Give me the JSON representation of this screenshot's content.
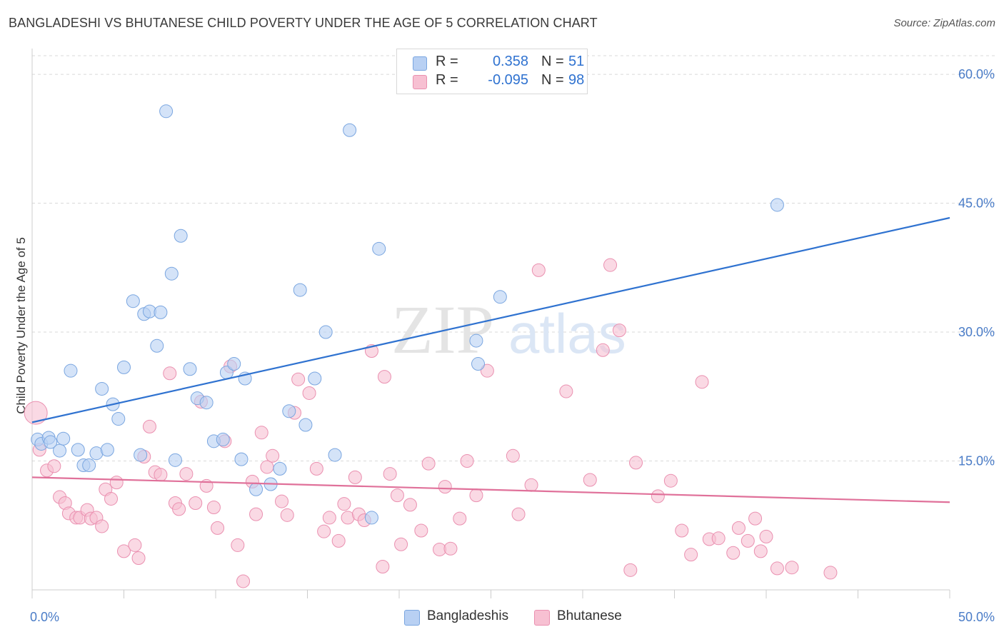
{
  "title": "BANGLADESHI VS BHUTANESE CHILD POVERTY UNDER THE AGE OF 5 CORRELATION CHART",
  "source": "Source: ZipAtlas.com",
  "watermark": {
    "zip": "ZIP",
    "atlas": "atlas"
  },
  "legend": {
    "rows": [
      {
        "r_label": "R =",
        "r_value": "0.358",
        "n_label": "N =",
        "n_value": "51"
      },
      {
        "r_label": "R =",
        "r_value": "-0.095",
        "n_label": "N =",
        "n_value": "98"
      }
    ]
  },
  "colors": {
    "blue_fill": "#b8d0f3",
    "blue_stroke": "#7aa6e0",
    "blue_line": "#2f72d0",
    "pink_fill": "#f7c0d2",
    "pink_stroke": "#ea90b0",
    "pink_line": "#e0719a",
    "tick_text": "#4a7cc7",
    "grid": "#d9d9d9"
  },
  "chart_data": {
    "type": "scatter",
    "title": "BANGLADESHI VS BHUTANESE CHILD POVERTY UNDER THE AGE OF 5 CORRELATION CHART",
    "xlabel": "",
    "ylabel": "Child Poverty Under the Age of 5",
    "xlim": [
      0,
      50
    ],
    "ylim": [
      0,
      62
    ],
    "x_tick_labels": [
      "0.0%",
      "50.0%"
    ],
    "y_ticks": [
      15,
      30,
      45,
      60
    ],
    "y_tick_labels": [
      "15.0%",
      "30.0%",
      "45.0%",
      "60.0%"
    ],
    "grid": true,
    "legend_position": "bottom",
    "series": [
      {
        "name": "Bangladeshis",
        "r": 0.358,
        "n": 51,
        "trend": [
          [
            0,
            19.5
          ],
          [
            50,
            43.3
          ]
        ],
        "points": [
          [
            0.3,
            17.5
          ],
          [
            0.5,
            17.0
          ],
          [
            0.9,
            17.7
          ],
          [
            1.0,
            17.2
          ],
          [
            1.5,
            16.2
          ],
          [
            1.7,
            17.6
          ],
          [
            2.1,
            25.5
          ],
          [
            2.5,
            16.3
          ],
          [
            2.8,
            14.5
          ],
          [
            3.1,
            14.5
          ],
          [
            3.5,
            15.9
          ],
          [
            3.8,
            23.4
          ],
          [
            4.1,
            16.3
          ],
          [
            4.4,
            21.6
          ],
          [
            4.7,
            19.9
          ],
          [
            5.0,
            25.9
          ],
          [
            5.5,
            33.6
          ],
          [
            5.9,
            15.7
          ],
          [
            6.1,
            32.1
          ],
          [
            6.4,
            32.4
          ],
          [
            6.8,
            28.4
          ],
          [
            7.0,
            32.3
          ],
          [
            7.3,
            55.7
          ],
          [
            7.8,
            15.1
          ],
          [
            7.6,
            36.8
          ],
          [
            8.1,
            41.2
          ],
          [
            8.6,
            25.7
          ],
          [
            9.0,
            22.3
          ],
          [
            9.5,
            21.8
          ],
          [
            9.9,
            17.3
          ],
          [
            10.4,
            17.5
          ],
          [
            10.6,
            25.3
          ],
          [
            11.0,
            26.3
          ],
          [
            11.4,
            15.2
          ],
          [
            11.6,
            24.6
          ],
          [
            12.2,
            11.7
          ],
          [
            13.0,
            12.3
          ],
          [
            13.5,
            14.1
          ],
          [
            14.0,
            20.8
          ],
          [
            14.6,
            34.9
          ],
          [
            14.9,
            19.2
          ],
          [
            15.4,
            24.6
          ],
          [
            16.0,
            30.0
          ],
          [
            16.5,
            15.7
          ],
          [
            17.3,
            53.5
          ],
          [
            18.5,
            8.4
          ],
          [
            18.9,
            39.7
          ],
          [
            24.3,
            26.3
          ],
          [
            24.2,
            29.0
          ],
          [
            25.5,
            34.1
          ],
          [
            40.6,
            44.8
          ]
        ]
      },
      {
        "name": "Bhutanese",
        "r": -0.095,
        "n": 98,
        "trend": [
          [
            0,
            13.1
          ],
          [
            50,
            10.2
          ]
        ],
        "points": [
          [
            0.2,
            20.6
          ],
          [
            0.4,
            16.3
          ],
          [
            0.8,
            13.9
          ],
          [
            1.2,
            14.4
          ],
          [
            1.5,
            10.8
          ],
          [
            1.8,
            10.1
          ],
          [
            2.0,
            8.9
          ],
          [
            2.4,
            8.4
          ],
          [
            2.6,
            8.4
          ],
          [
            3.0,
            9.3
          ],
          [
            3.2,
            8.3
          ],
          [
            3.5,
            8.4
          ],
          [
            3.8,
            7.4
          ],
          [
            4.0,
            11.7
          ],
          [
            4.3,
            10.6
          ],
          [
            4.6,
            12.5
          ],
          [
            5.0,
            4.5
          ],
          [
            5.6,
            5.2
          ],
          [
            5.8,
            3.7
          ],
          [
            6.1,
            15.5
          ],
          [
            6.4,
            19.0
          ],
          [
            6.7,
            13.7
          ],
          [
            7.0,
            13.4
          ],
          [
            7.5,
            25.2
          ],
          [
            7.8,
            10.1
          ],
          [
            8.0,
            9.4
          ],
          [
            8.4,
            13.5
          ],
          [
            8.9,
            10.1
          ],
          [
            9.2,
            21.9
          ],
          [
            9.5,
            12.1
          ],
          [
            9.9,
            9.6
          ],
          [
            10.1,
            7.2
          ],
          [
            10.5,
            17.3
          ],
          [
            10.8,
            26.0
          ],
          [
            11.2,
            5.2
          ],
          [
            11.5,
            1.0
          ],
          [
            12.0,
            12.6
          ],
          [
            12.2,
            8.8
          ],
          [
            12.5,
            18.3
          ],
          [
            12.8,
            14.3
          ],
          [
            13.1,
            15.6
          ],
          [
            13.6,
            10.3
          ],
          [
            13.9,
            8.7
          ],
          [
            14.3,
            20.6
          ],
          [
            14.5,
            24.5
          ],
          [
            15.1,
            22.9
          ],
          [
            15.5,
            14.1
          ],
          [
            15.9,
            6.8
          ],
          [
            16.2,
            8.4
          ],
          [
            16.7,
            5.7
          ],
          [
            17.0,
            10.0
          ],
          [
            17.2,
            8.4
          ],
          [
            17.6,
            13.1
          ],
          [
            17.8,
            8.8
          ],
          [
            18.1,
            8.1
          ],
          [
            18.5,
            27.8
          ],
          [
            19.1,
            2.7
          ],
          [
            19.2,
            24.8
          ],
          [
            19.5,
            13.5
          ],
          [
            19.9,
            11.0
          ],
          [
            20.1,
            5.3
          ],
          [
            20.6,
            9.9
          ],
          [
            21.2,
            6.9
          ],
          [
            21.6,
            14.7
          ],
          [
            22.2,
            4.7
          ],
          [
            22.5,
            12.0
          ],
          [
            22.8,
            4.8
          ],
          [
            23.3,
            8.3
          ],
          [
            23.7,
            15.0
          ],
          [
            24.2,
            11.0
          ],
          [
            24.8,
            25.5
          ],
          [
            26.2,
            15.6
          ],
          [
            26.5,
            8.8
          ],
          [
            27.2,
            12.2
          ],
          [
            27.6,
            37.2
          ],
          [
            29.1,
            23.1
          ],
          [
            30.4,
            12.8
          ],
          [
            31.1,
            27.9
          ],
          [
            31.5,
            37.8
          ],
          [
            32.0,
            30.2
          ],
          [
            32.6,
            2.3
          ],
          [
            32.9,
            14.8
          ],
          [
            34.1,
            10.9
          ],
          [
            34.8,
            12.7
          ],
          [
            35.4,
            6.9
          ],
          [
            35.9,
            4.1
          ],
          [
            36.5,
            24.2
          ],
          [
            36.9,
            5.9
          ],
          [
            37.4,
            6.0
          ],
          [
            38.2,
            4.3
          ],
          [
            38.5,
            7.2
          ],
          [
            39.0,
            5.7
          ],
          [
            39.4,
            8.3
          ],
          [
            39.7,
            4.5
          ],
          [
            40.0,
            6.2
          ],
          [
            40.6,
            2.5
          ],
          [
            41.4,
            2.6
          ],
          [
            43.5,
            2.0
          ]
        ]
      }
    ]
  }
}
